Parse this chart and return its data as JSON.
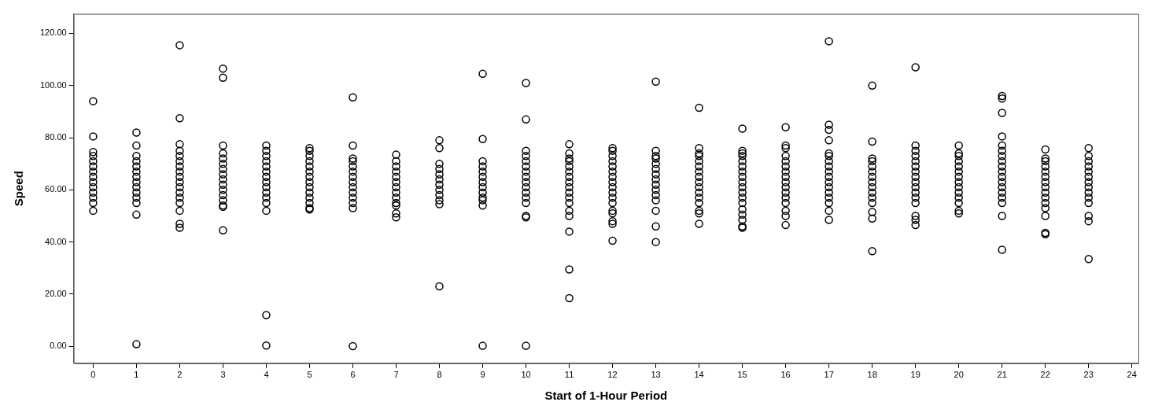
{
  "chart_data": {
    "type": "scatter",
    "xlabel": "Start of 1-Hour Period",
    "ylabel": "Speed",
    "marker": "circle",
    "grid": false,
    "legend": false,
    "xlim": [
      -0.45,
      24.15
    ],
    "xticks": [
      0,
      1,
      2,
      3,
      4,
      5,
      6,
      7,
      8,
      9,
      10,
      11,
      12,
      13,
      14,
      15,
      16,
      17,
      18,
      19,
      20,
      21,
      22,
      23,
      24
    ],
    "ylim": [
      -6.5,
      127.5
    ],
    "yticks": [
      {
        "value": 0,
        "label": "0.00"
      },
      {
        "value": 20,
        "label": "20.00"
      },
      {
        "value": 40,
        "label": "40.00"
      },
      {
        "value": 60,
        "label": "60.00"
      },
      {
        "value": 80,
        "label": "80.00"
      },
      {
        "value": 100,
        "label": "100.00"
      },
      {
        "value": 120,
        "label": "120.00"
      }
    ],
    "series": [
      {
        "color": "#000000",
        "x": [
          0,
          0,
          0,
          0,
          0,
          0,
          0,
          0,
          0,
          0,
          0,
          0,
          0,
          0
        ],
        "values": [
          55,
          57,
          59,
          61,
          63,
          65,
          67,
          69,
          71,
          73,
          74.5,
          52,
          80.5,
          94
        ]
      },
      {
        "color": "#000000",
        "x": [
          1,
          1,
          1,
          1,
          1,
          1,
          1,
          1,
          1,
          1,
          1,
          1,
          1,
          1
        ],
        "values": [
          55,
          57,
          59,
          61,
          63,
          65,
          67,
          69,
          71,
          73,
          50.5,
          77,
          82,
          0.8
        ]
      },
      {
        "color": "#000000",
        "x": [
          2,
          2,
          2,
          2,
          2,
          2,
          2,
          2,
          2,
          2,
          2,
          2,
          2,
          2,
          2,
          2,
          2
        ],
        "values": [
          55,
          57,
          59,
          61,
          63,
          65,
          67,
          69,
          71,
          73,
          75,
          77.5,
          87.5,
          115.5,
          52,
          47,
          45.5
        ]
      },
      {
        "color": "#000000",
        "x": [
          3,
          3,
          3,
          3,
          3,
          3,
          3,
          3,
          3,
          3,
          3,
          3,
          3,
          3,
          3,
          3
        ],
        "values": [
          54,
          56,
          58,
          60,
          62,
          64,
          66,
          68,
          70,
          72,
          74,
          77,
          103,
          106.5,
          53.5,
          44.5
        ]
      },
      {
        "color": "#000000",
        "x": [
          4,
          4,
          4,
          4,
          4,
          4,
          4,
          4,
          4,
          4,
          4,
          4,
          4,
          4,
          4
        ],
        "values": [
          55,
          57,
          59,
          61,
          63,
          65,
          67,
          69,
          71,
          73,
          75,
          77,
          52,
          12,
          0.3
        ]
      },
      {
        "color": "#000000",
        "x": [
          5,
          5,
          5,
          5,
          5,
          5,
          5,
          5,
          5,
          5,
          5,
          5,
          5,
          5
        ],
        "values": [
          55,
          57,
          59,
          61,
          63,
          65,
          67,
          69,
          71,
          73,
          75,
          76,
          53,
          52.5
        ]
      },
      {
        "color": "#000000",
        "x": [
          6,
          6,
          6,
          6,
          6,
          6,
          6,
          6,
          6,
          6,
          6,
          6,
          6,
          6
        ],
        "values": [
          55,
          57,
          59,
          61,
          63,
          65,
          67,
          69,
          71,
          72,
          77,
          95.5,
          53,
          0.1
        ]
      },
      {
        "color": "#000000",
        "x": [
          7,
          7,
          7,
          7,
          7,
          7,
          7,
          7,
          7,
          7,
          7,
          7,
          7
        ],
        "values": [
          55,
          57,
          59,
          61,
          63,
          65,
          67,
          69,
          71,
          73.5,
          54,
          51,
          49.5
        ]
      },
      {
        "color": "#000000",
        "x": [
          8,
          8,
          8,
          8,
          8,
          8,
          8,
          8,
          8,
          8,
          8,
          8
        ],
        "values": [
          58,
          60,
          62,
          64,
          66,
          68,
          70,
          76,
          79,
          56,
          54.5,
          23
        ]
      },
      {
        "color": "#000000",
        "x": [
          9,
          9,
          9,
          9,
          9,
          9,
          9,
          9,
          9,
          9,
          9,
          9,
          9
        ],
        "values": [
          57,
          59,
          61,
          63,
          65,
          67,
          69,
          71,
          79.5,
          104.5,
          56,
          54,
          0.2
        ]
      },
      {
        "color": "#000000",
        "x": [
          10,
          10,
          10,
          10,
          10,
          10,
          10,
          10,
          10,
          10,
          10,
          10,
          10,
          10,
          10,
          10
        ],
        "values": [
          55,
          57,
          59,
          61,
          63,
          65,
          67,
          69,
          71,
          73,
          75,
          87,
          101,
          50,
          49.5,
          0.2
        ]
      },
      {
        "color": "#000000",
        "x": [
          11,
          11,
          11,
          11,
          11,
          11,
          11,
          11,
          11,
          11,
          11,
          11,
          11,
          11,
          11,
          11,
          11
        ],
        "values": [
          55,
          57,
          59,
          61,
          63,
          65,
          67,
          69,
          71,
          72,
          74,
          77.5,
          52,
          50,
          44,
          29.5,
          18.5
        ]
      },
      {
        "color": "#000000",
        "x": [
          12,
          12,
          12,
          12,
          12,
          12,
          12,
          12,
          12,
          12,
          12,
          12,
          12,
          12,
          12,
          12,
          12
        ],
        "values": [
          55,
          57,
          59,
          61,
          63,
          65,
          67,
          69,
          71,
          73,
          75,
          76,
          52,
          51,
          48,
          47,
          40.5
        ]
      },
      {
        "color": "#000000",
        "x": [
          13,
          13,
          13,
          13,
          13,
          13,
          13,
          13,
          13,
          13,
          13,
          13,
          13,
          13,
          13
        ],
        "values": [
          56,
          58,
          60,
          62,
          64,
          66,
          68,
          70,
          72,
          73,
          75,
          101.5,
          52,
          46,
          40
        ]
      },
      {
        "color": "#000000",
        "x": [
          14,
          14,
          14,
          14,
          14,
          14,
          14,
          14,
          14,
          14,
          14,
          14,
          14,
          14,
          14,
          14
        ],
        "values": [
          55,
          57,
          59,
          61,
          63,
          65,
          67,
          69,
          71,
          73,
          74,
          76,
          91.5,
          52,
          51,
          47
        ]
      },
      {
        "color": "#000000",
        "x": [
          15,
          15,
          15,
          15,
          15,
          15,
          15,
          15,
          15,
          15,
          15,
          15,
          15,
          15,
          15,
          15,
          15,
          15
        ],
        "values": [
          55,
          57,
          59,
          61,
          63,
          65,
          67,
          69,
          71,
          73,
          74,
          75,
          83.5,
          52.5,
          50.5,
          48.5,
          46,
          45.5
        ]
      },
      {
        "color": "#000000",
        "x": [
          16,
          16,
          16,
          16,
          16,
          16,
          16,
          16,
          16,
          16,
          16,
          16,
          16,
          16,
          16,
          16
        ],
        "values": [
          55,
          57,
          59,
          61,
          63,
          65,
          67,
          69,
          71,
          73,
          76,
          77,
          84,
          52,
          50,
          46.5
        ]
      },
      {
        "color": "#000000",
        "x": [
          17,
          17,
          17,
          17,
          17,
          17,
          17,
          17,
          17,
          17,
          17,
          17,
          17,
          17,
          17,
          17,
          17
        ],
        "values": [
          55,
          57,
          59,
          61,
          63,
          65,
          67,
          69,
          71,
          73,
          74,
          79,
          83,
          85,
          117,
          52,
          48.5
        ]
      },
      {
        "color": "#000000",
        "x": [
          18,
          18,
          18,
          18,
          18,
          18,
          18,
          18,
          18,
          18,
          18,
          18,
          18,
          18,
          18
        ],
        "values": [
          55,
          57,
          59,
          61,
          63,
          65,
          67,
          69,
          71,
          72,
          78.5,
          100,
          51.5,
          49,
          36.5
        ]
      },
      {
        "color": "#000000",
        "x": [
          19,
          19,
          19,
          19,
          19,
          19,
          19,
          19,
          19,
          19,
          19,
          19,
          19,
          19,
          19,
          19
        ],
        "values": [
          55,
          57,
          59,
          61,
          63,
          65,
          67,
          69,
          71,
          73,
          75,
          77,
          107,
          50,
          48.5,
          46.5
        ]
      },
      {
        "color": "#000000",
        "x": [
          20,
          20,
          20,
          20,
          20,
          20,
          20,
          20,
          20,
          20,
          20,
          20,
          20,
          20
        ],
        "values": [
          55,
          57,
          59,
          61,
          63,
          65,
          67,
          69,
          71,
          73,
          74,
          77,
          52,
          51
        ]
      },
      {
        "color": "#000000",
        "x": [
          21,
          21,
          21,
          21,
          21,
          21,
          21,
          21,
          21,
          21,
          21,
          21,
          21,
          21,
          21,
          21,
          21,
          21
        ],
        "values": [
          55,
          57,
          59,
          61,
          63,
          65,
          67,
          69,
          71,
          73,
          75,
          77,
          80.5,
          89.5,
          95,
          96,
          50,
          37
        ]
      },
      {
        "color": "#000000",
        "x": [
          22,
          22,
          22,
          22,
          22,
          22,
          22,
          22,
          22,
          22,
          22,
          22,
          22,
          22,
          22
        ],
        "values": [
          55,
          57,
          59,
          61,
          63,
          65,
          67,
          69,
          71,
          72,
          75.5,
          53,
          50,
          43.5,
          43
        ]
      },
      {
        "color": "#000000",
        "x": [
          23,
          23,
          23,
          23,
          23,
          23,
          23,
          23,
          23,
          23,
          23,
          23,
          23,
          23
        ],
        "values": [
          55,
          57,
          59,
          61,
          63,
          65,
          67,
          69,
          71,
          73,
          76,
          50,
          48,
          33.5
        ]
      }
    ]
  }
}
